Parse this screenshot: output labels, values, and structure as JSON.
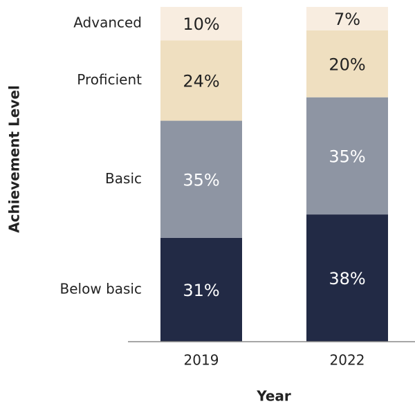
{
  "chart_data": {
    "type": "stacked_bar",
    "xlabel": "Year",
    "ylabel": "Achievement Level",
    "categories": [
      "2019",
      "2022"
    ],
    "ylim": [
      0,
      100
    ],
    "series": [
      {
        "name": "Below basic",
        "color": "#222a45",
        "values": [
          31,
          38
        ],
        "value_labels": [
          "31%",
          "38%"
        ]
      },
      {
        "name": "Basic",
        "color": "#8e95a3",
        "values": [
          35,
          35
        ],
        "value_labels": [
          "35%",
          "35%"
        ]
      },
      {
        "name": "Proficient",
        "color": "#efdfc0",
        "values": [
          24,
          20
        ],
        "value_labels": [
          "24%",
          "20%"
        ]
      },
      {
        "name": "Advanced",
        "color": "#f8ede0",
        "values": [
          10,
          7
        ],
        "value_labels": [
          "10%",
          "7%"
        ]
      }
    ]
  }
}
